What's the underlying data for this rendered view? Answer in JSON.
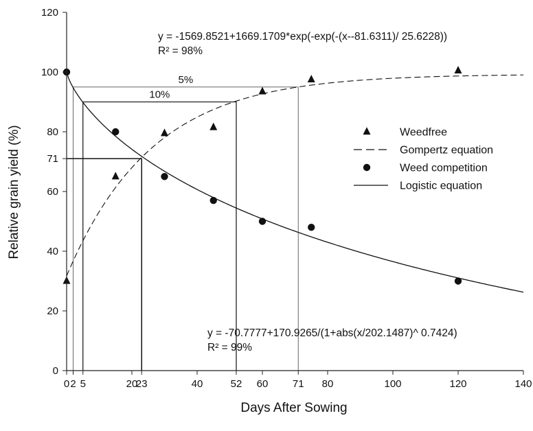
{
  "chart_data": {
    "type": "scatter",
    "xlabel": "Days After Sowing",
    "ylabel": "Relative grain yield (%)",
    "xlim": [
      0,
      140
    ],
    "ylim": [
      0,
      120
    ],
    "x_ticks": [
      0,
      2,
      5,
      20,
      23,
      40,
      52,
      60,
      71,
      80,
      100,
      120,
      140
    ],
    "x_tick_labels": [
      "0",
      "2",
      "5",
      "20",
      "23",
      "40",
      "52",
      "60",
      "71",
      "80",
      "100",
      "120",
      "140"
    ],
    "y_ticks": [
      0,
      20,
      40,
      60,
      71,
      80,
      100,
      120
    ],
    "y_tick_labels": [
      "0",
      "20",
      "40",
      "60",
      "71",
      "80",
      "100",
      "120"
    ],
    "grid": false,
    "legend_position": "right",
    "series": [
      {
        "name": "Weedfree",
        "marker": "triangle",
        "x": [
          0,
          15,
          30,
          45,
          60,
          75,
          120
        ],
        "y": [
          30,
          65,
          79.5,
          81.5,
          93.5,
          97.5,
          100.5
        ]
      },
      {
        "name": "Gompertz equation",
        "style": "dashed",
        "equation": "gompertz",
        "params": {
          "a": -1569.8521,
          "b": 1669.1709,
          "c": -81.6311,
          "d": 25.6228
        }
      },
      {
        "name": "Weed competition",
        "marker": "circle",
        "x": [
          0,
          15,
          30,
          45,
          60,
          75,
          120
        ],
        "y": [
          100,
          80,
          65,
          57,
          50,
          48,
          30
        ]
      },
      {
        "name": "Logistic equation",
        "style": "solid",
        "equation": "logistic",
        "params": {
          "a": -70.7777,
          "b": 170.9265,
          "c": 202.1487,
          "d": 0.7424
        }
      }
    ],
    "reference_lines": [
      {
        "label": "5%",
        "y": 95,
        "x_from": 2,
        "x_to": 71
      },
      {
        "label": "10%",
        "y": 90,
        "x_from": 5,
        "x_to": 52
      },
      {
        "label": "",
        "y": 71,
        "x_from": 0,
        "x_to": 23
      }
    ],
    "annotations": {
      "gompertz_equation": "y = -1569.8521+1669.1709*exp(-exp(-(x--81.6311)/ 25.6228))",
      "gompertz_r2": "R² = 98%",
      "logistic_equation": "y = -70.7777+170.9265/(1+abs(x/202.1487)^ 0.7424)",
      "logistic_r2": "R² = 99%"
    }
  }
}
